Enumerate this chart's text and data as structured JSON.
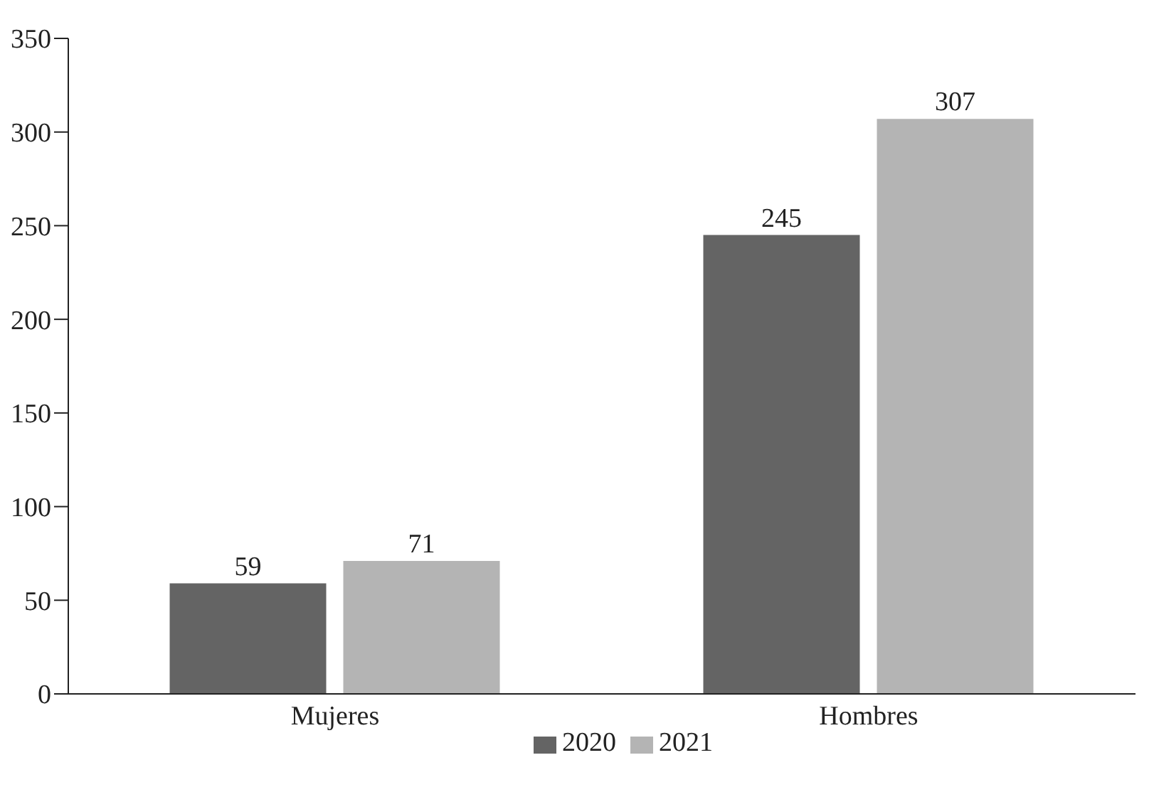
{
  "chart_data": {
    "type": "bar",
    "categories": [
      "Mujeres",
      "Hombres"
    ],
    "series": [
      {
        "name": "2020",
        "color": "#646464",
        "values": [
          59,
          245
        ]
      },
      {
        "name": "2021",
        "color": "#b4b4b4",
        "values": [
          71,
          307
        ]
      }
    ],
    "ylim": [
      0,
      350
    ],
    "yticks": [
      0,
      50,
      100,
      150,
      200,
      250,
      300,
      350
    ],
    "grid": false,
    "legend": "bottom",
    "data_labels": true
  }
}
